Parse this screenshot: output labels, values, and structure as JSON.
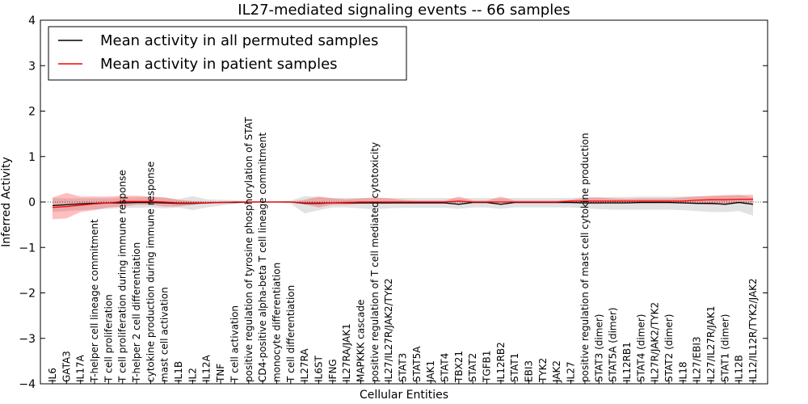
{
  "chart_data": {
    "type": "line",
    "title": "IL27-mediated signaling events -- 66 samples",
    "xlabel": "Cellular Entities",
    "ylabel": "Inferred Activity",
    "ylim": [
      -4,
      4
    ],
    "yticks": [
      "4",
      "3",
      "2",
      "1",
      "0",
      "−1",
      "−2",
      "−3",
      "−4"
    ],
    "yticks_values": [
      4,
      3,
      2,
      1,
      0,
      -1,
      -2,
      -3,
      -4
    ],
    "legend": {
      "placement": "top-left",
      "entries": [
        {
          "label": "Mean activity in all permuted samples",
          "color": "#000000"
        },
        {
          "label": "Mean activity in patient samples",
          "color": "#ff0000"
        }
      ]
    },
    "categories": [
      "IL6",
      "GATA3",
      "IL17A",
      "T-helper cell lineage commitment",
      "T cell proliferation",
      "T cell proliferation during immune response",
      "T-helper 2 cell differentiation",
      "cytokine production during immune response",
      "mast cell activation",
      "IL1B",
      "IL2",
      "IL12A",
      "TNF",
      "T cell activation",
      "positive regulation of tyrosine phosphorylation of STAT",
      "CD4-positive alpha-beta T cell lineage commitment",
      "monocyte differentiation",
      "T cell differentiation",
      "IL27RA",
      "IL6ST",
      "IFNG",
      "IL27RA/JAK1",
      "MAPKKK cascade",
      "positive regulation of T cell mediated cytotoxicity",
      "IL27/IL27R/JAK2/TYK2",
      "STAT3",
      "STAT5A",
      "JAK1",
      "STAT4",
      "TBX21",
      "STAT2",
      "TGFB1",
      "IL12RB2",
      "STAT1",
      "EBI3",
      "TYK2",
      "JAK2",
      "IL27",
      "positive regulation of mast cell cytokine production",
      "STAT3 (dimer)",
      "STAT5A (dimer)",
      "IL12RB1",
      "STAT4 (dimer)",
      "IL27R/JAK2/TYK2",
      "STAT2 (dimer)",
      "IL18",
      "IL27/EBI3",
      "IL27/IL27R/JAK1",
      "STAT1 (dimer)",
      "IL12B",
      "IL12/IL12R/TYK2/JAK2"
    ],
    "series": [
      {
        "name": "Mean activity in all permuted samples",
        "color": "#000000",
        "values": [
          -0.08,
          -0.06,
          -0.04,
          -0.03,
          -0.02,
          -0.02,
          -0.01,
          -0.01,
          -0.02,
          -0.03,
          -0.03,
          -0.02,
          -0.01,
          -0.01,
          0,
          0,
          0,
          0,
          -0.03,
          -0.03,
          -0.02,
          -0.02,
          -0.02,
          -0.02,
          -0.02,
          -0.02,
          -0.02,
          -0.02,
          -0.02,
          -0.05,
          -0.01,
          -0.01,
          -0.05,
          -0.01,
          -0.01,
          -0.01,
          -0.01,
          -0.01,
          -0.02,
          -0.02,
          -0.02,
          -0.02,
          -0.01,
          -0.01,
          -0.01,
          -0.02,
          -0.03,
          -0.03,
          -0.05,
          -0.01,
          -0.05
        ],
        "band_low": [
          -0.22,
          -0.2,
          -0.18,
          -0.16,
          -0.15,
          -0.13,
          -0.13,
          -0.12,
          -0.14,
          -0.12,
          -0.18,
          -0.12,
          -0.08,
          -0.04,
          -0.02,
          -0.01,
          -0.01,
          -0.04,
          -0.25,
          -0.18,
          -0.12,
          -0.12,
          -0.14,
          -0.16,
          -0.14,
          -0.13,
          -0.13,
          -0.13,
          -0.13,
          -0.15,
          -0.12,
          -0.12,
          -0.15,
          -0.12,
          -0.12,
          -0.12,
          -0.12,
          -0.12,
          -0.14,
          -0.16,
          -0.17,
          -0.17,
          -0.17,
          -0.17,
          -0.17,
          -0.18,
          -0.2,
          -0.22,
          -0.22,
          -0.2,
          -0.3
        ],
        "band_high": [
          0.09,
          0.08,
          0.08,
          0.08,
          0.08,
          0.1,
          0.1,
          0.11,
          0.1,
          0.06,
          0.13,
          0.06,
          0.05,
          0.04,
          0.02,
          0.01,
          0.01,
          0.03,
          0.13,
          0.11,
          0.09,
          0.09,
          0.09,
          0.09,
          0.09,
          0.09,
          0.09,
          0.09,
          0.09,
          0.08,
          0.09,
          0.09,
          0.08,
          0.09,
          0.09,
          0.09,
          0.09,
          0.09,
          0.1,
          0.1,
          0.11,
          0.11,
          0.12,
          0.12,
          0.12,
          0.12,
          0.13,
          0.13,
          0.14,
          0.16,
          0.1
        ]
      },
      {
        "name": "Mean activity in patient samples",
        "color": "#ff0000",
        "values": [
          -0.12,
          -0.1,
          -0.07,
          -0.04,
          -0.02,
          0.01,
          0.01,
          0.01,
          0,
          -0.02,
          -0.02,
          -0.02,
          -0.01,
          0,
          0,
          0,
          0,
          0,
          -0.02,
          -0.02,
          -0.02,
          -0.01,
          0,
          0,
          0,
          0,
          0,
          0,
          0,
          0.02,
          0,
          0,
          0,
          0,
          0,
          0,
          0,
          0.02,
          0.02,
          0.02,
          0.02,
          0.02,
          0.02,
          0.02,
          0.02,
          0.02,
          0.04,
          0.05,
          0.05,
          0.06,
          0.06
        ],
        "band_low": [
          -0.38,
          -0.36,
          -0.22,
          -0.18,
          -0.12,
          -0.1,
          -0.06,
          -0.06,
          -0.1,
          -0.1,
          -0.06,
          -0.04,
          -0.02,
          -0.01,
          0,
          0,
          0,
          0,
          -0.05,
          -0.12,
          -0.06,
          -0.06,
          -0.04,
          -0.04,
          -0.04,
          -0.02,
          -0.02,
          -0.02,
          -0.02,
          -0.02,
          -0.01,
          -0.01,
          -0.02,
          -0.01,
          -0.01,
          -0.01,
          -0.01,
          -0.02,
          -0.04,
          -0.04,
          -0.02,
          -0.01,
          -0.02,
          -0.02,
          -0.02,
          -0.02,
          -0.04,
          -0.06,
          -0.04,
          -0.02,
          -0.02
        ],
        "band_high": [
          0.1,
          0.2,
          0.12,
          0.12,
          0.12,
          0.14,
          0.14,
          0.12,
          0.1,
          0.05,
          0.02,
          0.01,
          0.01,
          0.01,
          0.01,
          0,
          0,
          0.01,
          0.05,
          0.12,
          0.08,
          0.06,
          0.08,
          0.1,
          0.08,
          0.05,
          0.03,
          0.03,
          0.03,
          0.12,
          0.03,
          0.03,
          0.12,
          0.03,
          0.03,
          0.03,
          0.03,
          0.05,
          0.1,
          0.1,
          0.08,
          0.07,
          0.08,
          0.08,
          0.08,
          0.1,
          0.12,
          0.14,
          0.15,
          0.15,
          0.16
        ]
      }
    ]
  }
}
